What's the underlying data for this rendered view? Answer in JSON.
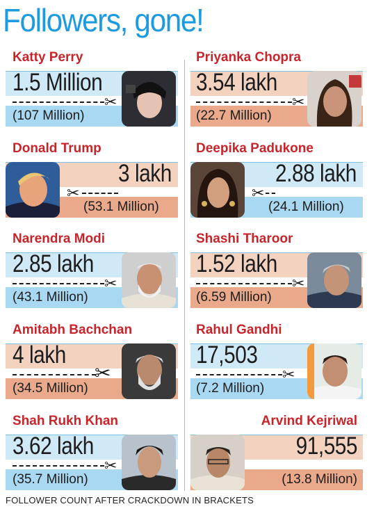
{
  "title": "Followers, gone!",
  "footer": "FOLLOWER COUNT AFTER CRACKDOWN IN BRACKETS",
  "cards": [
    {
      "name": "Katty Perry",
      "lost": "1.5 Million",
      "previous": "(107 Million)"
    },
    {
      "name": "Priyanka Chopra",
      "lost": "3.54 lakh",
      "previous": "(22.7 Million)"
    },
    {
      "name": "Donald Trump",
      "lost": "3 lakh",
      "previous": "(53.1 Million)"
    },
    {
      "name": "Deepika Padukone",
      "lost": "2.88 lakh",
      "previous": "(24.1 Million)"
    },
    {
      "name": "Narendra Modi",
      "lost": "2.85 lakh",
      "previous": "(43.1 Million)"
    },
    {
      "name": "Shashi Tharoor",
      "lost": "1.52 lakh",
      "previous": "(6.59 Million)"
    },
    {
      "name": "Amitabh Bachchan",
      "lost": "4 lakh",
      "previous": "(34.5 Million)"
    },
    {
      "name": "Rahul Gandhi",
      "lost": "17,503",
      "previous": "(7.2 Million)"
    },
    {
      "name": "Shah Rukh Khan",
      "lost": "3.62 lakh",
      "previous": "(35.7 Million)"
    },
    {
      "name": "Arvind Kejriwal",
      "lost": "91,555",
      "previous": "(13.8 Million)"
    }
  ],
  "colors": {
    "title": "#1d9be0",
    "name": "#c8242b",
    "band_blue": "#cfe9f7",
    "band_blue_strong": "#a8d8f2",
    "band_peach": "#f4d2c0",
    "band_salmon": "#e9a98a"
  },
  "icons": {
    "cut": "scissors-icon"
  }
}
